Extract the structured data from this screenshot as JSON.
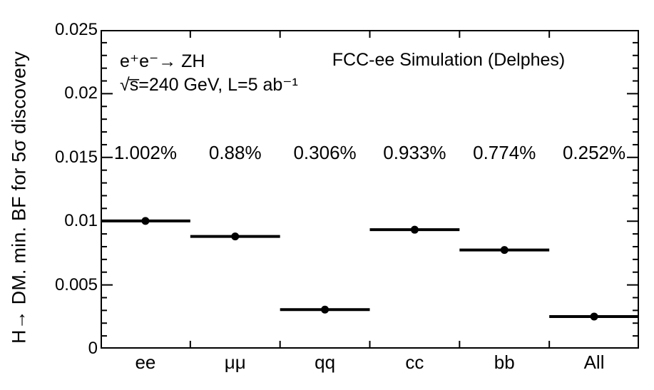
{
  "chart_data": {
    "type": "scatter",
    "title": "FCC-ee Simulation (Delphes)",
    "ylabel": "H→ DM. min. BF for 5σ discovery",
    "xlabel": "",
    "categories": [
      "ee",
      "μμ",
      "qq",
      "cc",
      "bb",
      "All"
    ],
    "values": [
      0.01002,
      0.0088,
      0.00306,
      0.00933,
      0.00774,
      0.00252
    ],
    "annotations": [
      "1.002%",
      "0.88%",
      "0.306%",
      "0.933%",
      "0.774%",
      "0.252%"
    ],
    "corner_texts": {
      "process": "e⁺e⁻→ ZH",
      "conditions": "√s̅=240 GeV, L=5 ab⁻¹"
    },
    "ylim": [
      0,
      0.025
    ],
    "ytick_labels": [
      "0.025",
      "0.02",
      "0.015",
      "0.01",
      "0.005",
      "0"
    ],
    "ytick_major_step": 0.005,
    "ytick_minor_step": 0.001,
    "x_error_full_bin_width": true,
    "grid": false,
    "legend": "none",
    "marker": "filled-circle",
    "ink_color": "#000000",
    "background_color": "#ffffff"
  }
}
